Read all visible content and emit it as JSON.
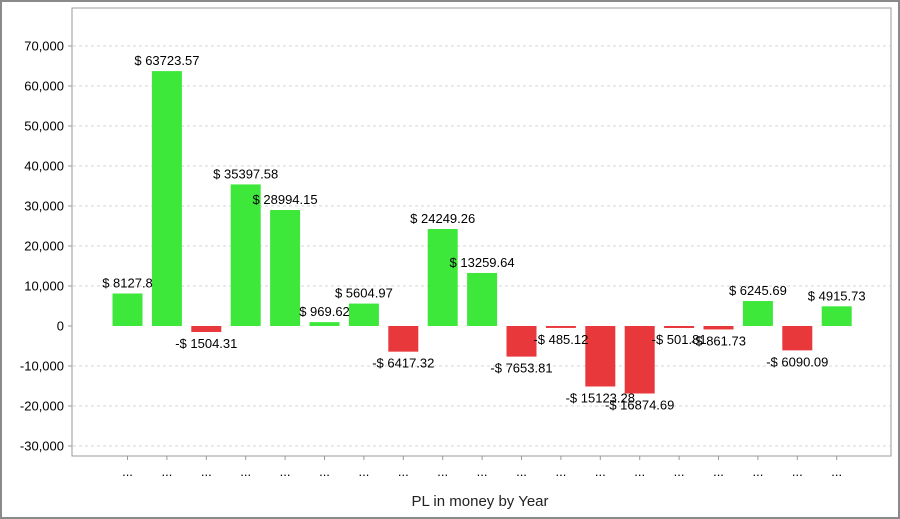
{
  "chart_data": {
    "type": "bar",
    "title": "",
    "xlabel": "PL in money by Year",
    "ylabel": "",
    "ylim": [
      -33000,
      80000
    ],
    "yticks": [
      -30000,
      -20000,
      -10000,
      0,
      10000,
      20000,
      30000,
      40000,
      50000,
      60000,
      70000
    ],
    "ytick_labels": [
      "-30,000",
      "-20,000",
      "-10,000",
      "0",
      "10,000",
      "20,000",
      "30,000",
      "40,000",
      "50,000",
      "60,000",
      "70,000"
    ],
    "grid": true,
    "legend": "none",
    "categories": [
      "...",
      "...",
      "...",
      "...",
      "...",
      "...",
      "...",
      "...",
      "...",
      "...",
      "...",
      "...",
      "...",
      "...",
      "...",
      "...",
      "...",
      "...",
      "..."
    ],
    "values": [
      8127.8,
      63723.57,
      -1504.31,
      35397.58,
      28994.15,
      969.62,
      5604.97,
      -6417.32,
      24249.26,
      13259.64,
      -7653.81,
      -485.12,
      -15123.28,
      -16874.69,
      -501.81,
      -861.73,
      6245.69,
      -6090.09,
      4915.73
    ],
    "value_labels": [
      "$ 8127.8",
      "$ 63723.57",
      "-$ 1504.31",
      "$ 35397.58",
      "$ 28994.15",
      "$ 969.62",
      "$ 5604.97",
      "-$ 6417.32",
      "$ 24249.26",
      "$ 13259.64",
      "-$ 7653.81",
      "-$ 485.12",
      "-$ 15123.28",
      "-$ 16874.69",
      "-$ 501.81",
      "-$ 861.73",
      "$ 6245.69",
      "-$ 6090.09",
      "$ 4915.73"
    ],
    "colors": {
      "positive": "#3de83a",
      "negative": "#e8383b",
      "grid": "#d4d4d4",
      "axis": "#999999"
    }
  }
}
